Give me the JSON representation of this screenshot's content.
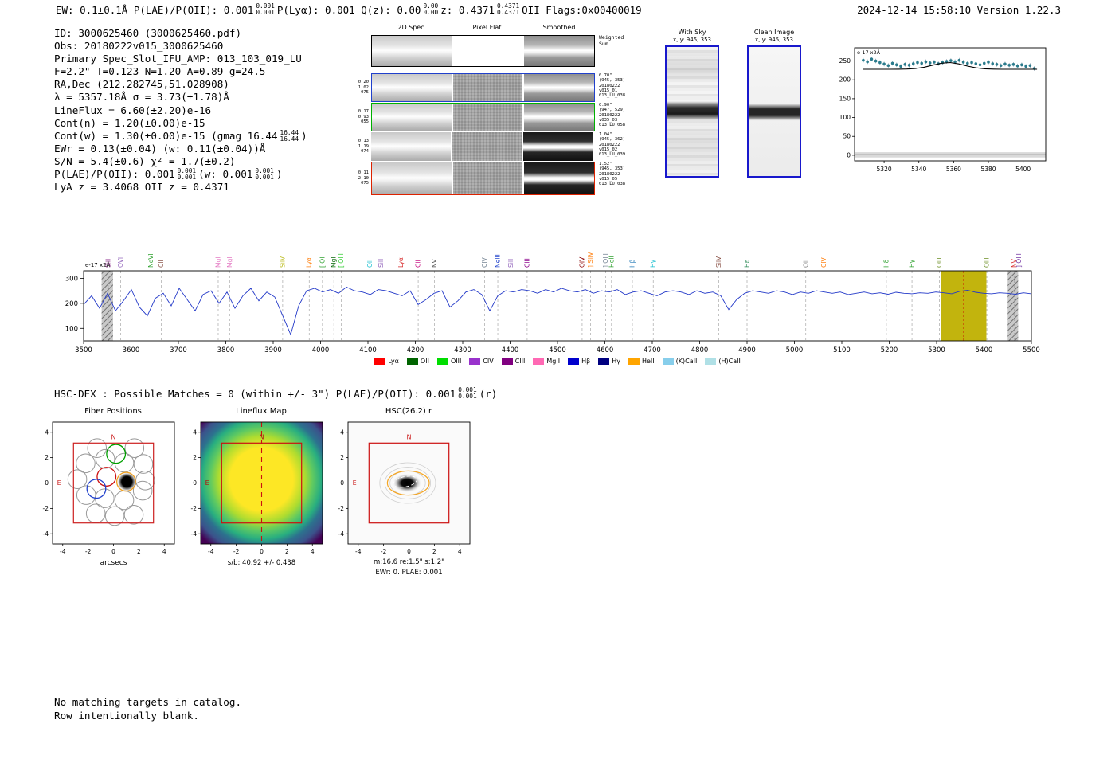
{
  "meta": {
    "timestamp_version": "2024-12-14 15:58:10  Version 1.22.3"
  },
  "header": {
    "segments": [
      {
        "t": "EW: 0.1±0.1Å  P(LAE)/P(OII): 0.001"
      },
      {
        "s": [
          "0.001",
          "0.001"
        ]
      },
      {
        "t": "  P(Lyα): 0.001  Q(z): 0.00"
      },
      {
        "s": [
          "0.00",
          "0.00"
        ]
      },
      {
        "t": "  z: 0.4371"
      },
      {
        "s": [
          "0.4371",
          "0.4371"
        ]
      },
      {
        "t": " OII   Flags:0x00400019"
      }
    ]
  },
  "info": {
    "lines": [
      [
        {
          "t": "ID: 3000625460 (3000625460.pdf)"
        }
      ],
      [
        {
          "t": "Obs: 20180222v015_3000625460"
        }
      ],
      [
        {
          "t": "Primary Spec_Slot_IFU_AMP: 013_103_019_LU"
        }
      ],
      [
        {
          "t": "F=2.2\"  T=0.123  N=1.20  A=0.89  g=24.5"
        }
      ],
      [
        {
          "t": "RA,Dec (212.282745,51.028908)"
        }
      ],
      [
        {
          "t": "λ = 5357.18Å  σ = 3.73(±1.78)Å"
        }
      ],
      [
        {
          "t": "LineFlux = 6.60(±2.20)e-16"
        }
      ],
      [
        {
          "t": "Cont(n) = 1.20(±0.00)e-15"
        }
      ],
      [
        {
          "t": "Cont(w) = 1.30(±0.00)e-15 (gmag 16.44"
        },
        {
          "s": [
            "16.44",
            "16.44"
          ]
        },
        {
          "t": ")"
        }
      ],
      [
        {
          "t": "EWr = 0.13(±0.04) (w: 0.11(±0.04))Å"
        }
      ],
      [
        {
          "t": "S/N = 5.4(±0.6)  χ² = 1.7(±0.2)"
        }
      ],
      [
        {
          "t": "P(LAE)/P(OII): 0.001"
        },
        {
          "s": [
            "0.001",
            "0.001"
          ]
        },
        {
          "t": " (w: 0.001"
        },
        {
          "s": [
            "0.001",
            "0.001"
          ]
        },
        {
          "t": ")"
        }
      ],
      [
        {
          "t": "LyA z = 3.4068  OII z = 0.4371"
        }
      ]
    ]
  },
  "cutouts": {
    "columns": [
      "2D Spec",
      "Pixel Flat",
      "Smoothed"
    ],
    "rows": [
      {
        "left": [],
        "right": [
          "Weighted",
          "Sum"
        ],
        "border": "#000000"
      },
      {
        "left": [
          "0.20",
          "1.02",
          "075"
        ],
        "right": [
          "0.70\"",
          "(945, 353)",
          "20180222",
          "v015_01",
          "013_LU_038"
        ],
        "border": "#2040cc"
      },
      {
        "left": [
          "0.17",
          "0.93",
          "055"
        ],
        "right": [
          "0.90\"",
          "(947, 529)",
          "20180222",
          "v035_03",
          "013_LU_058"
        ],
        "border": "#00b000"
      },
      {
        "left": [
          "0.13",
          "1.19",
          "074"
        ],
        "right": [
          "1.04\"",
          "(945, 362)",
          "20180222",
          "v015_02",
          "013_LU_039"
        ],
        "border": ""
      },
      {
        "left": [
          "0.11",
          "2.10",
          "075"
        ],
        "right": [
          "1.52\"",
          "(945, 353)",
          "20180222",
          "v015_05",
          "013_LU_038"
        ],
        "border": "#dd2200"
      }
    ]
  },
  "sky_panels": [
    {
      "title": "With Sky",
      "subtitle": "x, y: 945, 353"
    },
    {
      "title": "Clean Image",
      "subtitle": "x, y: 945, 353"
    }
  ],
  "hsc_dex": {
    "segments": [
      {
        "t": "HSC-DEX : Possible Matches = 0 (within +/- 3\")  P(LAE)/P(OII): 0.001"
      },
      {
        "s": [
          "0.001",
          "0.001"
        ]
      },
      {
        "t": " (r)"
      }
    ]
  },
  "panels": {
    "fiber": {
      "title": "Fiber Positions",
      "xlabel": "arcsecs",
      "ticks": [
        -4,
        -2,
        0,
        2,
        4
      ],
      "north": "N",
      "east": "E",
      "fibers_gray": [
        [
          -1.3,
          2.75
        ],
        [
          1.65,
          2.75
        ],
        [
          -2.2,
          1.55
        ],
        [
          -0.65,
          1.9
        ],
        [
          0.85,
          1.6
        ],
        [
          2.35,
          1.5
        ],
        [
          -2.85,
          0.3
        ],
        [
          2.5,
          0.2
        ],
        [
          -2.15,
          -0.95
        ],
        [
          -0.7,
          -1.2
        ],
        [
          0.85,
          -1.35
        ],
        [
          2.3,
          -0.6
        ],
        [
          -1.4,
          -2.4
        ],
        [
          0.1,
          -2.6
        ],
        [
          1.6,
          -2.5
        ]
      ],
      "fiber_green": [
        0.2,
        2.3
      ],
      "fiber_red": [
        -0.55,
        0.5
      ],
      "fiber_blue": [
        -1.35,
        -0.45
      ],
      "fiber_orange": [
        1.0,
        0.1
      ],
      "blob": [
        1.05,
        0.1
      ]
    },
    "lineflux": {
      "title": "Lineflux Map",
      "caption": "s/b: 40.92 +/- 0.438",
      "ticks": [
        -4,
        -2,
        0,
        2,
        4
      ],
      "north": "N",
      "east": "E"
    },
    "hsc": {
      "title": "HSC(26.2) r",
      "caption1": "m:16.6 re:1.5\" s:1.2\"",
      "caption2": "EWr: 0. PLAE: 0.001",
      "ticks": [
        -4,
        -2,
        0,
        2,
        4
      ],
      "north": "N",
      "east": "E"
    }
  },
  "footer": {
    "lines": [
      "No matching targets in catalog.",
      "Row intentionally blank."
    ]
  },
  "chart_data": [
    {
      "name": "full_spectrum",
      "type": "line",
      "title": "",
      "xlabel": "wavelength (Å)",
      "ylabel": "e-17 x2Å",
      "xlim": [
        3500,
        5500
      ],
      "ylim": [
        50,
        330
      ],
      "x_ticks": [
        3500,
        3600,
        3700,
        3800,
        3900,
        4000,
        4100,
        4200,
        4300,
        4400,
        4500,
        4600,
        4700,
        4800,
        4900,
        5000,
        5100,
        5200,
        5300,
        5400,
        5500
      ],
      "y_ticks": [
        100,
        200,
        300
      ],
      "x_start": 3500,
      "x_step": 16.8067,
      "y": [
        195,
        230,
        180,
        240,
        170,
        210,
        255,
        185,
        150,
        220,
        240,
        190,
        260,
        215,
        170,
        235,
        250,
        200,
        245,
        180,
        230,
        260,
        210,
        245,
        225,
        150,
        75,
        190,
        250,
        260,
        245,
        255,
        240,
        265,
        250,
        245,
        235,
        255,
        250,
        240,
        230,
        250,
        195,
        215,
        240,
        250,
        185,
        210,
        245,
        255,
        235,
        170,
        230,
        250,
        245,
        255,
        250,
        240,
        255,
        245,
        260,
        250,
        245,
        255,
        240,
        250,
        245,
        255,
        235,
        245,
        250,
        240,
        230,
        245,
        250,
        245,
        235,
        250,
        240,
        245,
        230,
        175,
        215,
        240,
        250,
        245,
        240,
        250,
        245,
        235,
        245,
        240,
        250,
        245,
        240,
        245,
        235,
        240,
        245,
        238,
        242,
        236,
        244,
        240,
        238,
        242,
        240,
        245,
        242,
        238,
        248,
        252,
        244,
        240,
        238,
        242,
        240,
        236,
        242,
        238
      ],
      "highlight_band": [
        5310,
        5405
      ],
      "hatch_bands": [
        [
          3538,
          3562
        ],
        [
          5450,
          5472
        ]
      ],
      "detection_line": 5357.18,
      "line_labels": [
        {
          "label": "SiII",
          "wave": 3552,
          "color": "#8b2a8b"
        },
        {
          "label": "OVI",
          "wave": 3578,
          "color": "#9467bd"
        },
        {
          "label": "NeVI",
          "wave": 3642,
          "color": "#2ca02c"
        },
        {
          "label": "CII",
          "wave": 3664,
          "color": "#8c564b"
        },
        {
          "label": "MgII",
          "wave": 3784,
          "color": "#e377c2"
        },
        {
          "label": "MgII",
          "wave": 3808,
          "color": "#e377c2"
        },
        {
          "label": "SiIV",
          "wave": 3920,
          "color": "#bcbd22"
        },
        {
          "label": "Lyα",
          "wave": 3976,
          "color": "#ff7f0e"
        },
        {
          "label": "[ OII",
          "wave": 4004,
          "color": "#2ca02c"
        },
        {
          "label": "MgII",
          "wave": 4028,
          "color": "#006400"
        },
        {
          "label": "[ OIII",
          "wave": 4044,
          "color": "#32cd32"
        },
        {
          "label": "OII",
          "wave": 4104,
          "color": "#17becf"
        },
        {
          "label": "SiII",
          "wave": 4128,
          "color": "#9467bd"
        },
        {
          "label": "Lyα",
          "wave": 4170,
          "color": "#d62728"
        },
        {
          "label": "CII",
          "wave": 4206,
          "color": "#c71585"
        },
        {
          "label": "NV",
          "wave": 4240,
          "color": "#444444"
        },
        {
          "label": "CIV",
          "wave": 4346,
          "color": "#708090"
        },
        {
          "label": "NeIII",
          "wave": 4374,
          "color": "#2244cc"
        },
        {
          "label": "SiII",
          "wave": 4402,
          "color": "#9467bd"
        },
        {
          "label": "CIII",
          "wave": 4436,
          "color": "#8b008b"
        },
        {
          "label": "OIV",
          "wave": 4552,
          "color": "#8b0000"
        },
        {
          "label": "] SiIV",
          "wave": 4570,
          "color": "#ff7f0e"
        },
        {
          "label": "] OIII",
          "wave": 4602,
          "color": "#708090"
        },
        {
          "label": "HeII",
          "wave": 4614,
          "color": "#2ca02c"
        },
        {
          "label": "Hβ",
          "wave": 4658,
          "color": "#1f77b4"
        },
        {
          "label": "Hγ",
          "wave": 4702,
          "color": "#17becf"
        },
        {
          "label": "SiIV",
          "wave": 4840,
          "color": "#8c564b"
        },
        {
          "label": "Hε",
          "wave": 4900,
          "color": "#2e8b57"
        },
        {
          "label": "OII",
          "wave": 5024,
          "color": "#808080"
        },
        {
          "label": "CIV",
          "wave": 5062,
          "color": "#ff7f0e"
        },
        {
          "label": "Hδ",
          "wave": 5194,
          "color": "#2ca02c"
        },
        {
          "label": "Hγ",
          "wave": 5248,
          "color": "#2ca02c"
        },
        {
          "label": "OIII",
          "wave": 5306,
          "color": "#6b8e23"
        },
        {
          "label": "OIII",
          "wave": 5406,
          "color": "#6b8e23"
        },
        {
          "label": "NV",
          "wave": 5464,
          "color": "#d62728"
        },
        {
          "label": "] OIII",
          "wave": 5474,
          "color": "#7030a0"
        }
      ],
      "legend": [
        {
          "label": "Lyα",
          "color": "#ff0000"
        },
        {
          "label": "OII",
          "color": "#006400"
        },
        {
          "label": "OIII",
          "color": "#00dd00"
        },
        {
          "label": "CIV",
          "color": "#9932cc"
        },
        {
          "label": "CIII",
          "color": "#800080"
        },
        {
          "label": "MgII",
          "color": "#ff69b4"
        },
        {
          "label": "Hβ",
          "color": "#0000cd"
        },
        {
          "label": "Hγ",
          "color": "#000080"
        },
        {
          "label": "HeII",
          "color": "#ffa500"
        },
        {
          "label": "(K)CaII",
          "color": "#87ceeb"
        },
        {
          "label": "(H)CaII",
          "color": "#b0e0e6"
        }
      ]
    },
    {
      "name": "line_fit",
      "type": "scatter+line",
      "ylabel": "e-17 x2Å",
      "xlim": [
        5303,
        5413
      ],
      "ylim": [
        -15,
        285
      ],
      "x_ticks": [
        5320,
        5340,
        5360,
        5380,
        5400
      ],
      "y_ticks": [
        0,
        50,
        100,
        150,
        200,
        250
      ],
      "points_x_start": 5308,
      "points_x_step": 2.4,
      "yerr": 6,
      "points_y": [
        252,
        248,
        255,
        250,
        246,
        242,
        238,
        244,
        240,
        236,
        241,
        239,
        243,
        246,
        244,
        248,
        245,
        247,
        243,
        246,
        249,
        251,
        248,
        252,
        247,
        244,
        246,
        243,
        240,
        244,
        247,
        243,
        241,
        238,
        242,
        239,
        241,
        237,
        240,
        236,
        238,
        230
      ],
      "fit_x_start": 5308,
      "fit_x_step": 5,
      "fit_y": [
        228,
        228,
        228,
        228,
        228.1,
        228.5,
        229.9,
        233.4,
        238.9,
        244.3,
        245.9,
        242.4,
        236.5,
        231.7,
        229.2,
        228.3,
        228,
        228,
        228,
        228,
        228
      ]
    }
  ]
}
